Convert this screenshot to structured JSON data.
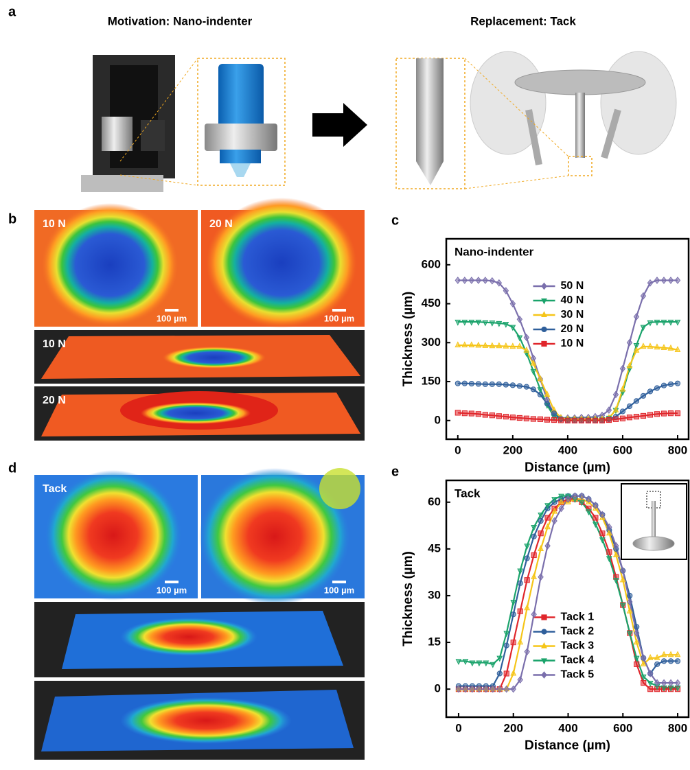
{
  "panels": {
    "a": {
      "label": "a",
      "left_title": "Motivation: Nano-indenter",
      "right_title": "Replacement: Tack"
    },
    "b": {
      "label": "b",
      "tile_labels": [
        "10 N",
        "20 N"
      ],
      "view_labels": [
        "10 N",
        "20 N"
      ],
      "scale_bars": [
        "100 µm",
        "100 µm"
      ]
    },
    "d": {
      "label": "d",
      "tile_label": "Tack",
      "scale_bars": [
        "100 µm",
        "100 µm"
      ]
    }
  },
  "chart_data": [
    {
      "type": "line",
      "label": "c",
      "title": "Nano-indenter",
      "xlabel": "Distance (µm)",
      "ylabel": "Thickness (µm)",
      "xlim": [
        -42,
        840
      ],
      "xticks": [
        0,
        200,
        400,
        600,
        800
      ],
      "ylim": [
        -72,
        700
      ],
      "yticks": [
        0,
        150,
        300,
        450,
        600
      ],
      "grid": false,
      "legend": "center",
      "x": [
        0,
        25,
        50,
        75,
        100,
        125,
        150,
        175,
        200,
        225,
        250,
        275,
        300,
        325,
        350,
        375,
        400,
        425,
        450,
        475,
        500,
        525,
        550,
        575,
        600,
        625,
        650,
        675,
        700,
        725,
        750,
        775,
        800
      ],
      "series": [
        {
          "name": "50 N",
          "color": "#7a6fac",
          "marker": "diamond",
          "values": [
            540,
            540,
            540,
            540,
            540,
            538,
            530,
            500,
            450,
            390,
            320,
            240,
            160,
            80,
            25,
            10,
            10,
            10,
            12,
            12,
            15,
            20,
            40,
            100,
            200,
            300,
            400,
            480,
            530,
            540,
            540,
            540,
            540
          ]
        },
        {
          "name": "40 N",
          "color": "#1aa36b",
          "marker": "triangle-down",
          "values": [
            380,
            380,
            380,
            380,
            378,
            377,
            375,
            372,
            360,
            320,
            260,
            190,
            120,
            60,
            15,
            5,
            5,
            5,
            5,
            5,
            5,
            5,
            10,
            40,
            110,
            200,
            290,
            360,
            378,
            380,
            380,
            380,
            380
          ]
        },
        {
          "name": "30 N",
          "color": "#f5c518",
          "marker": "triangle-up",
          "values": [
            290,
            290,
            290,
            289,
            288,
            287,
            287,
            286,
            285,
            285,
            270,
            220,
            160,
            100,
            40,
            10,
            5,
            5,
            5,
            5,
            5,
            5,
            10,
            40,
            120,
            210,
            270,
            285,
            285,
            282,
            280,
            278,
            272
          ]
        },
        {
          "name": "20 N",
          "color": "#2f5f9b",
          "marker": "circle",
          "values": [
            143,
            143,
            142,
            141,
            140,
            140,
            140,
            138,
            136,
            133,
            130,
            120,
            100,
            65,
            28,
            5,
            0,
            0,
            0,
            0,
            0,
            0,
            5,
            15,
            35,
            55,
            75,
            95,
            112,
            125,
            135,
            140,
            143
          ]
        },
        {
          "name": "10 N",
          "color": "#e0262b",
          "marker": "square",
          "values": [
            30,
            28,
            27,
            25,
            22,
            20,
            17,
            15,
            12,
            10,
            8,
            6,
            5,
            3,
            2,
            1,
            0,
            0,
            0,
            0,
            0,
            0,
            2,
            5,
            8,
            12,
            15,
            18,
            22,
            25,
            27,
            28,
            28
          ]
        }
      ]
    },
    {
      "type": "line",
      "label": "e",
      "title": "Tack",
      "xlabel": "Distance (µm)",
      "ylabel": "Thickness (µm)",
      "xlim": [
        -45,
        840
      ],
      "xticks": [
        0,
        200,
        400,
        600,
        800
      ],
      "ylim": [
        -9,
        67
      ],
      "yticks": [
        0,
        15,
        30,
        45,
        60
      ],
      "grid": false,
      "legend": "lower center",
      "x": [
        0,
        25,
        50,
        75,
        100,
        125,
        150,
        175,
        200,
        225,
        250,
        275,
        300,
        325,
        350,
        375,
        400,
        425,
        450,
        475,
        500,
        525,
        550,
        575,
        600,
        625,
        650,
        675,
        700,
        725,
        750,
        775,
        800
      ],
      "series": [
        {
          "name": "Tack 1",
          "color": "#e0262b",
          "marker": "square",
          "values": [
            0,
            0,
            0,
            0,
            0,
            0,
            0,
            5,
            15,
            25,
            35,
            43,
            50,
            55,
            58,
            60,
            61,
            61,
            60,
            58,
            55,
            50,
            44,
            36,
            27,
            18,
            8,
            2,
            0,
            0,
            0,
            0,
            0
          ]
        },
        {
          "name": "Tack 2",
          "color": "#2f5f9b",
          "marker": "circle",
          "values": [
            1,
            1,
            1,
            1,
            1,
            1,
            5,
            14,
            24,
            34,
            42,
            49,
            54,
            58,
            60,
            61,
            62,
            62,
            62,
            61,
            59,
            56,
            51,
            45,
            38,
            30,
            20,
            10,
            5,
            8,
            9,
            9,
            9
          ]
        },
        {
          "name": "Tack 3",
          "color": "#f5c518",
          "marker": "triangle-up",
          "values": [
            0,
            0,
            0,
            0,
            0,
            0,
            0,
            0,
            5,
            15,
            26,
            36,
            45,
            52,
            57,
            60,
            60,
            61,
            61,
            60,
            58,
            55,
            50,
            43,
            35,
            25,
            15,
            8,
            10,
            10,
            11,
            11,
            11
          ]
        },
        {
          "name": "Tack 4",
          "color": "#1aa36b",
          "marker": "triangle-down",
          "values": [
            9,
            9,
            8.5,
            8.5,
            8.5,
            8,
            10,
            18,
            28,
            38,
            46,
            52,
            56,
            59,
            61,
            62,
            62,
            61,
            60,
            57,
            53,
            48,
            42,
            35,
            27,
            18,
            10,
            4,
            2,
            1,
            0.5,
            0.5,
            0.5
          ]
        },
        {
          "name": "Tack 5",
          "color": "#7a6fac",
          "marker": "diamond",
          "values": [
            0,
            0,
            0,
            0,
            0,
            0,
            0,
            0,
            0,
            3,
            12,
            24,
            36,
            46,
            54,
            58,
            61,
            62,
            62,
            61,
            59,
            56,
            52,
            46,
            38,
            28,
            18,
            10,
            5,
            2,
            2,
            2,
            2
          ]
        }
      ]
    }
  ]
}
